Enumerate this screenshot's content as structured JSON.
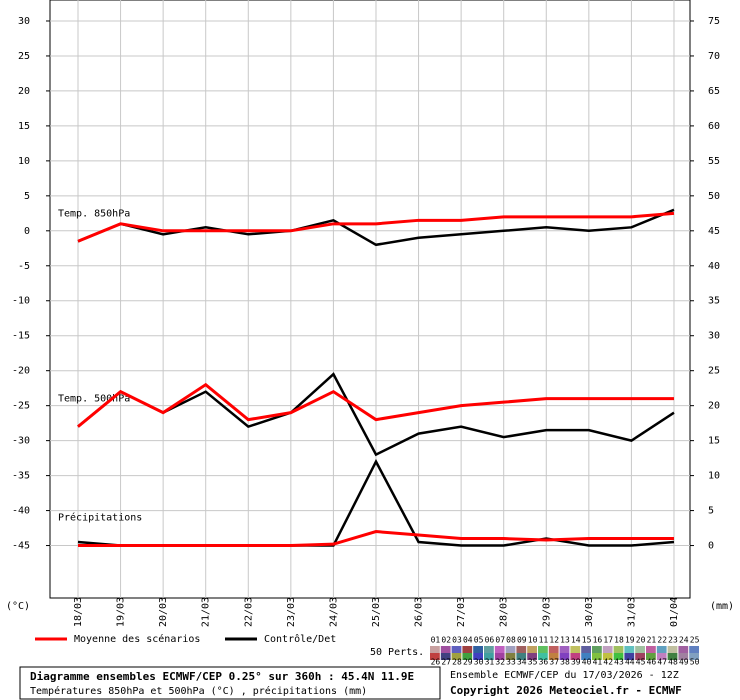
{
  "chart_data": {
    "type": "line",
    "categories": [
      "18/03",
      "19/03",
      "20/03",
      "21/03",
      "22/03",
      "23/03",
      "24/03",
      "25/03",
      "26/03",
      "27/03",
      "28/03",
      "29/03",
      "30/03",
      "31/03",
      "01/04"
    ],
    "ylim": [
      -52.5,
      33
    ],
    "yticks": [
      30,
      25,
      20,
      15,
      10,
      5,
      0,
      -5,
      -10,
      -15,
      -20,
      -25,
      -30,
      -35,
      -40,
      -45
    ],
    "y2lim": [
      -7.5,
      78
    ],
    "y2ticks": [
      75,
      70,
      65,
      60,
      55,
      50,
      45,
      40,
      35,
      30,
      25,
      20,
      15,
      10,
      5,
      0
    ],
    "ylabel": "(°C)",
    "y2label": "(mm)",
    "grid": true,
    "legend": [
      {
        "name": "Moyenne des scénarios",
        "color": "#ff0000"
      },
      {
        "name": "Contrôle/Det",
        "color": "#000000"
      }
    ],
    "panels": [
      {
        "label": "Temp. 850hPa",
        "axis": "y",
        "mean": [
          -1.5,
          1,
          0,
          0,
          0,
          0,
          1,
          1,
          1.5,
          1.5,
          2,
          2,
          2,
          2,
          2.5
        ],
        "control": [
          -1.5,
          1,
          -0.5,
          0.5,
          -0.5,
          0,
          1.5,
          -2,
          -1,
          -0.5,
          0,
          0.5,
          0,
          0.5,
          3
        ]
      },
      {
        "label": "Temp. 500hPa",
        "axis": "y",
        "mean": [
          -28,
          -23,
          -26,
          -22,
          -27,
          -26,
          -23,
          -27,
          -26,
          -25,
          -24.5,
          -24,
          -24,
          -24,
          -24
        ],
        "control": [
          -28,
          -23,
          -26,
          -23,
          -28,
          -26,
          -20.5,
          -32,
          -29,
          -28,
          -29.5,
          -28.5,
          -28.5,
          -30,
          -26
        ]
      },
      {
        "label": "Précipitations",
        "axis": "y2",
        "mean": [
          0,
          0,
          0,
          0,
          0,
          0,
          0.2,
          2,
          1.5,
          1,
          1,
          0.8,
          1,
          1,
          1
        ],
        "control": [
          0.5,
          0,
          0,
          0,
          0,
          0,
          0,
          12,
          0.5,
          0,
          0,
          1,
          0,
          0,
          0.5
        ]
      }
    ],
    "members_title": "50 Perts.",
    "members": [
      {
        "label": "01",
        "color": "#c8a0a0"
      },
      {
        "label": "02",
        "color": "#a050a0"
      },
      {
        "label": "03",
        "color": "#6060c0"
      },
      {
        "label": "04",
        "color": "#a04040"
      },
      {
        "label": "05",
        "color": "#3060a0"
      },
      {
        "label": "06",
        "color": "#60a0a0"
      },
      {
        "label": "07",
        "color": "#c060c0"
      },
      {
        "label": "08",
        "color": "#a0a0c0"
      },
      {
        "label": "09",
        "color": "#a06060"
      },
      {
        "label": "10",
        "color": "#c0a060"
      },
      {
        "label": "11",
        "color": "#60c060"
      },
      {
        "label": "12",
        "color": "#c06060"
      },
      {
        "label": "13",
        "color": "#a060c0"
      },
      {
        "label": "14",
        "color": "#c0c060"
      },
      {
        "label": "15",
        "color": "#6060a0"
      },
      {
        "label": "16",
        "color": "#60a060"
      },
      {
        "label": "17",
        "color": "#c0a0c0"
      },
      {
        "label": "18",
        "color": "#a0c060"
      },
      {
        "label": "19",
        "color": "#60c0c0"
      },
      {
        "label": "20",
        "color": "#a0c0a0"
      },
      {
        "label": "21",
        "color": "#c060a0"
      },
      {
        "label": "22",
        "color": "#60a0c0"
      },
      {
        "label": "23",
        "color": "#c0c0a0"
      },
      {
        "label": "24",
        "color": "#a060a0"
      },
      {
        "label": "25",
        "color": "#6080c0"
      },
      {
        "label": "26",
        "color": "#c04040"
      },
      {
        "label": "27",
        "color": "#404080"
      },
      {
        "label": "28",
        "color": "#a0a040"
      },
      {
        "label": "29",
        "color": "#40a040"
      },
      {
        "label": "30",
        "color": "#4040c0"
      },
      {
        "label": "31",
        "color": "#40a0a0"
      },
      {
        "label": "32",
        "color": "#a040a0"
      },
      {
        "label": "33",
        "color": "#808040"
      },
      {
        "label": "34",
        "color": "#408080"
      },
      {
        "label": "35",
        "color": "#804080"
      },
      {
        "label": "36",
        "color": "#40c0a0"
      },
      {
        "label": "37",
        "color": "#c08040"
      },
      {
        "label": "38",
        "color": "#8040c0"
      },
      {
        "label": "39",
        "color": "#c04080"
      },
      {
        "label": "40",
        "color": "#4080c0"
      },
      {
        "label": "41",
        "color": "#80c040"
      },
      {
        "label": "42",
        "color": "#c0c040"
      },
      {
        "label": "43",
        "color": "#40c040"
      },
      {
        "label": "44",
        "color": "#4040a0"
      },
      {
        "label": "45",
        "color": "#a04060"
      },
      {
        "label": "46",
        "color": "#60a040"
      },
      {
        "label": "47",
        "color": "#c080c0"
      },
      {
        "label": "48",
        "color": "#408040"
      },
      {
        "label": "49",
        "color": "#a080a0"
      },
      {
        "label": "50",
        "color": "#80a0c0"
      }
    ],
    "footer": {
      "title": "Diagramme ensembles ECMWF/CEP 0.25° sur 360h : 45.4N 11.9E",
      "subtitle": "Températures 850hPa et 500hPa (°C) , précipitations (mm)",
      "run": "Ensemble ECMWF/CEP du 17/03/2026 - 12Z",
      "copyright": "Copyright 2026 Meteociel.fr - ECMWF"
    }
  }
}
